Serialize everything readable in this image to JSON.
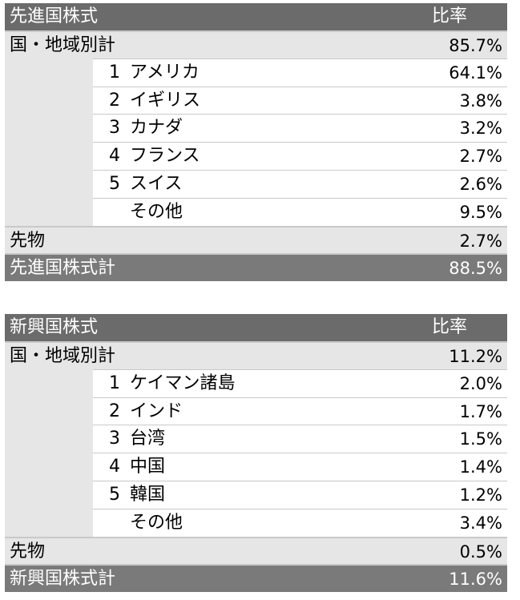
{
  "developed": {
    "header": {
      "title": "先進国株式",
      "ratio_label": "比率"
    },
    "region_total": {
      "label": "国・地域別計",
      "value": "85.7%"
    },
    "items": [
      {
        "rank": "1",
        "name": "アメリカ",
        "value": "64.1%"
      },
      {
        "rank": "2",
        "name": "イギリス",
        "value": "3.8%"
      },
      {
        "rank": "3",
        "name": "カナダ",
        "value": "3.2%"
      },
      {
        "rank": "4",
        "name": "フランス",
        "value": "2.7%"
      },
      {
        "rank": "5",
        "name": "スイス",
        "value": "2.6%"
      },
      {
        "rank": "",
        "name": "その他",
        "value": "9.5%"
      }
    ],
    "futures": {
      "label": "先物",
      "value": "2.7%"
    },
    "total": {
      "label": "先進国株式計",
      "value": "88.5%"
    }
  },
  "emerging": {
    "header": {
      "title": "新興国株式",
      "ratio_label": "比率"
    },
    "region_total": {
      "label": "国・地域別計",
      "value": "11.2%"
    },
    "items": [
      {
        "rank": "1",
        "name": "ケイマン諸島",
        "value": "2.0%"
      },
      {
        "rank": "2",
        "name": "インド",
        "value": "1.7%"
      },
      {
        "rank": "3",
        "name": "台湾",
        "value": "1.5%"
      },
      {
        "rank": "4",
        "name": "中国",
        "value": "1.4%"
      },
      {
        "rank": "5",
        "name": "韓国",
        "value": "1.2%"
      },
      {
        "rank": "",
        "name": "その他",
        "value": "3.4%"
      }
    ],
    "futures": {
      "label": "先物",
      "value": "0.5%"
    },
    "total": {
      "label": "新興国株式計",
      "value": "11.6%"
    }
  }
}
